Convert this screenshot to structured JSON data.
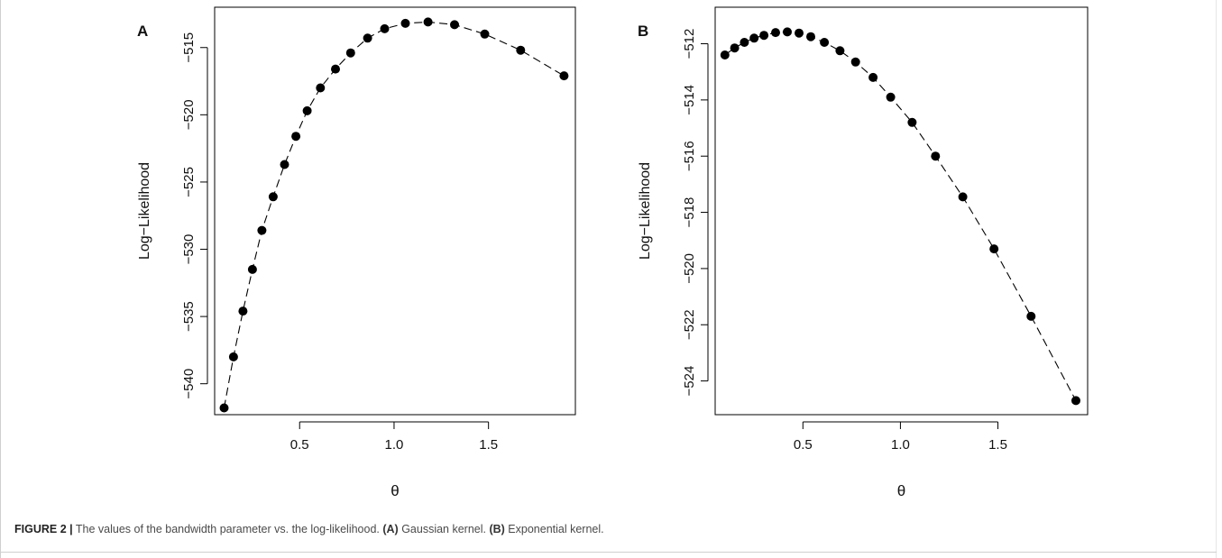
{
  "chart_data": [
    {
      "type": "scatter",
      "panel_label": "A",
      "title": "",
      "xlabel": "θ",
      "ylabel": "Log−Likelihood",
      "xlim": [
        0.05,
        1.96
      ],
      "ylim": [
        -542.3,
        -512.0
      ],
      "xticks": [
        0.5,
        1.0,
        1.5
      ],
      "xtick_labels": [
        "0.5",
        "1.0",
        "1.5"
      ],
      "yticks": [
        -540,
        -535,
        -530,
        -525,
        -520,
        -515
      ],
      "ytick_labels": [
        "−540",
        "−535",
        "−530",
        "−525",
        "−520",
        "−515"
      ],
      "line_style": "dashed",
      "x": [
        0.1,
        0.15,
        0.2,
        0.25,
        0.3,
        0.36,
        0.42,
        0.48,
        0.54,
        0.61,
        0.69,
        0.77,
        0.86,
        0.95,
        1.06,
        1.18,
        1.32,
        1.48,
        1.67,
        1.9
      ],
      "y": [
        -541.8,
        -538.0,
        -534.6,
        -531.5,
        -528.6,
        -526.1,
        -523.7,
        -521.6,
        -519.7,
        -518.0,
        -516.6,
        -515.4,
        -514.3,
        -513.6,
        -513.2,
        -513.1,
        -513.3,
        -514.0,
        -515.2,
        -517.1
      ]
    },
    {
      "type": "scatter",
      "panel_label": "B",
      "title": "",
      "xlabel": "θ",
      "ylabel": "Log−Likelihood",
      "xlim": [
        0.05,
        1.96
      ],
      "ylim": [
        -525.2,
        -510.7
      ],
      "xticks": [
        0.5,
        1.0,
        1.5
      ],
      "xtick_labels": [
        "0.5",
        "1.0",
        "1.5"
      ],
      "yticks": [
        -524,
        -522,
        -520,
        -518,
        -516,
        -514,
        -512
      ],
      "ytick_labels": [
        "−524",
        "−522",
        "−520",
        "−518",
        "−516",
        "−514",
        "−512"
      ],
      "line_style": "dashed",
      "x": [
        0.1,
        0.15,
        0.2,
        0.25,
        0.3,
        0.36,
        0.42,
        0.48,
        0.54,
        0.61,
        0.69,
        0.77,
        0.86,
        0.95,
        1.06,
        1.18,
        1.32,
        1.48,
        1.67,
        1.9
      ],
      "y": [
        -512.4,
        -512.15,
        -511.95,
        -511.8,
        -511.7,
        -511.6,
        -511.58,
        -511.62,
        -511.75,
        -511.95,
        -512.25,
        -512.65,
        -513.2,
        -513.9,
        -514.8,
        -516.0,
        -517.45,
        -519.3,
        -521.7,
        -524.7
      ]
    }
  ],
  "caption": {
    "figure_label": "FIGURE 2 |",
    "part1": " The values of the bandwidth parameter vs. the log-likelihood. ",
    "a_tag": "(A)",
    "a_text": " Gaussian kernel. ",
    "b_tag": "(B)",
    "b_text": " Exponential kernel."
  }
}
